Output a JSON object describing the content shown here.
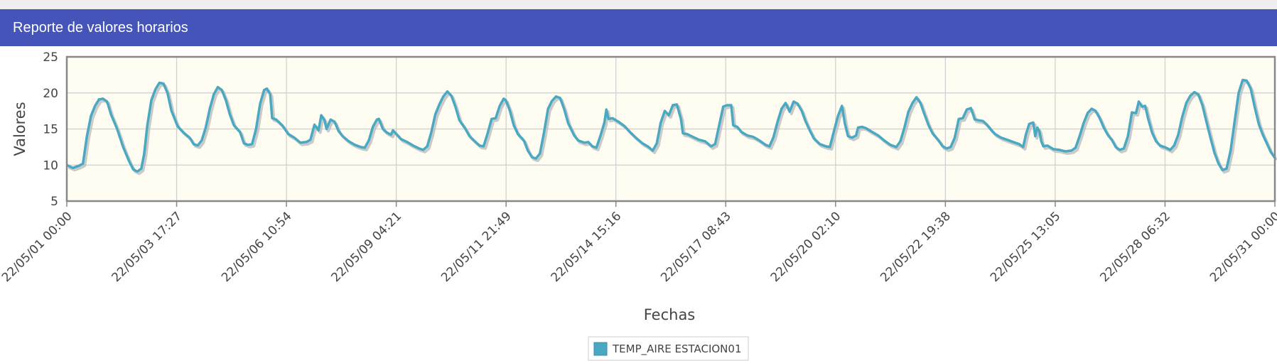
{
  "header": {
    "title": "Reporte de valores horarios"
  },
  "colors": {
    "header_bg": "#4454b8",
    "plot_bg": "#fffcf2",
    "series": "#4aa9c2",
    "shadow": "#bdbdbd",
    "grid": "#cfcfcf"
  },
  "chart_data": {
    "type": "line",
    "title": "",
    "xlabel": "Fechas",
    "ylabel": "Valores",
    "ylim": [
      5,
      25
    ],
    "yticks": [
      5,
      10,
      15,
      20,
      25
    ],
    "xlim": [
      "2022-05-01 00:00",
      "2022-05-31 00:00"
    ],
    "xtick_labels": [
      "22/05/01 00:00",
      "22/05/03 17:27",
      "22/05/06 10:54",
      "22/05/09 04:21",
      "22/05/11 21:49",
      "22/05/14 15:16",
      "22/05/17 08:43",
      "22/05/20 02:10",
      "22/05/22 19:38",
      "22/05/25 13:05",
      "22/05/28 06:32",
      "22/05/31 00:00"
    ],
    "grid": true,
    "legend_position": "bottom-center",
    "series": [
      {
        "name": "TEMP_AIRE ESTACION01",
        "color": "#4aa9c2",
        "note_x_unit": "days since 2022-05-01 00:00",
        "points": [
          [
            0.0,
            10.0
          ],
          [
            0.15,
            9.6
          ],
          [
            0.3,
            9.9
          ],
          [
            0.4,
            10.2
          ],
          [
            0.5,
            14.0
          ],
          [
            0.6,
            16.8
          ],
          [
            0.7,
            18.2
          ],
          [
            0.8,
            19.1
          ],
          [
            0.9,
            19.2
          ],
          [
            1.0,
            18.8
          ],
          [
            1.1,
            17.0
          ],
          [
            1.25,
            15.0
          ],
          [
            1.4,
            12.5
          ],
          [
            1.55,
            10.5
          ],
          [
            1.65,
            9.4
          ],
          [
            1.75,
            9.1
          ],
          [
            1.85,
            9.5
          ],
          [
            1.92,
            11.5
          ],
          [
            2.0,
            15.5
          ],
          [
            2.1,
            19.0
          ],
          [
            2.2,
            20.5
          ],
          [
            2.3,
            21.4
          ],
          [
            2.4,
            21.3
          ],
          [
            2.5,
            20.0
          ],
          [
            2.6,
            17.5
          ],
          [
            2.75,
            15.4
          ],
          [
            2.9,
            14.5
          ],
          [
            3.05,
            13.8
          ],
          [
            3.15,
            12.9
          ],
          [
            3.25,
            12.7
          ],
          [
            3.35,
            13.4
          ],
          [
            3.45,
            15.2
          ],
          [
            3.55,
            17.8
          ],
          [
            3.65,
            19.8
          ],
          [
            3.75,
            20.8
          ],
          [
            3.85,
            20.4
          ],
          [
            3.95,
            19.0
          ],
          [
            4.05,
            17.0
          ],
          [
            4.15,
            15.5
          ],
          [
            4.3,
            14.6
          ],
          [
            4.4,
            13.0
          ],
          [
            4.5,
            12.8
          ],
          [
            4.6,
            12.9
          ],
          [
            4.7,
            15.0
          ],
          [
            4.8,
            18.5
          ],
          [
            4.9,
            20.4
          ],
          [
            4.97,
            20.6
          ],
          [
            5.05,
            19.8
          ],
          [
            5.1,
            16.5
          ],
          [
            5.2,
            16.3
          ],
          [
            5.35,
            15.5
          ],
          [
            5.5,
            14.3
          ],
          [
            5.65,
            13.8
          ],
          [
            5.8,
            13.1
          ],
          [
            5.95,
            13.2
          ],
          [
            6.05,
            13.5
          ],
          [
            6.15,
            15.6
          ],
          [
            6.25,
            14.8
          ],
          [
            6.32,
            16.9
          ],
          [
            6.4,
            16.2
          ],
          [
            6.45,
            15.0
          ],
          [
            6.55,
            16.3
          ],
          [
            6.65,
            16.0
          ],
          [
            6.75,
            14.7
          ],
          [
            6.85,
            14.0
          ],
          [
            7.0,
            13.3
          ],
          [
            7.15,
            12.8
          ],
          [
            7.3,
            12.5
          ],
          [
            7.4,
            12.4
          ],
          [
            7.5,
            13.4
          ],
          [
            7.6,
            15.3
          ],
          [
            7.7,
            16.3
          ],
          [
            7.75,
            16.4
          ],
          [
            7.85,
            15.0
          ],
          [
            7.95,
            14.5
          ],
          [
            8.05,
            14.2
          ],
          [
            8.1,
            14.8
          ],
          [
            8.2,
            14.2
          ],
          [
            8.3,
            13.6
          ],
          [
            8.45,
            13.2
          ],
          [
            8.6,
            12.7
          ],
          [
            8.75,
            12.3
          ],
          [
            8.85,
            12.1
          ],
          [
            8.95,
            12.6
          ],
          [
            9.05,
            14.5
          ],
          [
            9.15,
            17.0
          ],
          [
            9.25,
            18.4
          ],
          [
            9.35,
            19.5
          ],
          [
            9.45,
            20.2
          ],
          [
            9.55,
            19.6
          ],
          [
            9.65,
            18.1
          ],
          [
            9.75,
            16.2
          ],
          [
            9.9,
            15.0
          ],
          [
            10.0,
            14.0
          ],
          [
            10.15,
            13.2
          ],
          [
            10.25,
            12.7
          ],
          [
            10.35,
            12.6
          ],
          [
            10.45,
            14.4
          ],
          [
            10.55,
            16.4
          ],
          [
            10.65,
            16.5
          ],
          [
            10.75,
            18.2
          ],
          [
            10.85,
            19.2
          ],
          [
            10.9,
            19.0
          ],
          [
            11.0,
            17.6
          ],
          [
            11.1,
            15.5
          ],
          [
            11.2,
            14.3
          ],
          [
            11.35,
            13.4
          ],
          [
            11.45,
            12.0
          ],
          [
            11.55,
            11.1
          ],
          [
            11.65,
            10.9
          ],
          [
            11.75,
            11.6
          ],
          [
            11.85,
            14.5
          ],
          [
            11.95,
            17.8
          ],
          [
            12.05,
            18.9
          ],
          [
            12.15,
            19.5
          ],
          [
            12.25,
            19.3
          ],
          [
            12.35,
            17.8
          ],
          [
            12.45,
            15.8
          ],
          [
            12.6,
            14.1
          ],
          [
            12.7,
            13.4
          ],
          [
            12.85,
            13.1
          ],
          [
            12.95,
            13.2
          ],
          [
            13.05,
            12.6
          ],
          [
            13.15,
            12.4
          ],
          [
            13.25,
            14.0
          ],
          [
            13.35,
            15.9
          ],
          [
            13.4,
            17.7
          ],
          [
            13.45,
            16.4
          ],
          [
            13.55,
            16.5
          ],
          [
            13.7,
            16.0
          ],
          [
            13.85,
            15.4
          ],
          [
            14.0,
            14.5
          ],
          [
            14.15,
            13.7
          ],
          [
            14.3,
            13.0
          ],
          [
            14.45,
            12.5
          ],
          [
            14.55,
            12.0
          ],
          [
            14.65,
            13.0
          ],
          [
            14.75,
            15.9
          ],
          [
            14.85,
            17.5
          ],
          [
            14.95,
            16.9
          ],
          [
            15.05,
            18.3
          ],
          [
            15.15,
            18.4
          ],
          [
            15.25,
            16.4
          ],
          [
            15.3,
            14.4
          ],
          [
            15.4,
            14.3
          ],
          [
            15.55,
            13.9
          ],
          [
            15.7,
            13.5
          ],
          [
            15.85,
            13.3
          ],
          [
            16.0,
            12.6
          ],
          [
            16.1,
            12.9
          ],
          [
            16.2,
            15.5
          ],
          [
            16.3,
            18.1
          ],
          [
            16.4,
            18.3
          ],
          [
            16.5,
            18.3
          ],
          [
            16.55,
            15.5
          ],
          [
            16.65,
            15.3
          ],
          [
            16.75,
            14.6
          ],
          [
            16.9,
            14.1
          ],
          [
            17.05,
            13.9
          ],
          [
            17.2,
            13.4
          ],
          [
            17.35,
            12.8
          ],
          [
            17.45,
            12.6
          ],
          [
            17.55,
            13.9
          ],
          [
            17.65,
            16.0
          ],
          [
            17.75,
            17.8
          ],
          [
            17.85,
            18.6
          ],
          [
            17.95,
            17.4
          ],
          [
            18.05,
            18.8
          ],
          [
            18.15,
            18.5
          ],
          [
            18.25,
            17.5
          ],
          [
            18.35,
            16.0
          ],
          [
            18.45,
            14.8
          ],
          [
            18.55,
            13.7
          ],
          [
            18.7,
            12.9
          ],
          [
            18.85,
            12.6
          ],
          [
            18.95,
            12.5
          ],
          [
            19.05,
            14.7
          ],
          [
            19.15,
            16.8
          ],
          [
            19.25,
            18.2
          ],
          [
            19.32,
            15.8
          ],
          [
            19.4,
            14.0
          ],
          [
            19.5,
            13.8
          ],
          [
            19.6,
            14.1
          ],
          [
            19.65,
            15.2
          ],
          [
            19.75,
            15.3
          ],
          [
            19.85,
            15.1
          ],
          [
            20.0,
            14.6
          ],
          [
            20.15,
            14.1
          ],
          [
            20.3,
            13.4
          ],
          [
            20.45,
            12.8
          ],
          [
            20.6,
            12.5
          ],
          [
            20.7,
            13.3
          ],
          [
            20.8,
            15.2
          ],
          [
            20.9,
            17.4
          ],
          [
            21.0,
            18.6
          ],
          [
            21.1,
            19.4
          ],
          [
            21.2,
            18.6
          ],
          [
            21.3,
            17.0
          ],
          [
            21.4,
            15.5
          ],
          [
            21.5,
            14.4
          ],
          [
            21.65,
            13.4
          ],
          [
            21.75,
            12.6
          ],
          [
            21.85,
            12.3
          ],
          [
            21.95,
            12.5
          ],
          [
            22.05,
            13.8
          ],
          [
            22.15,
            16.4
          ],
          [
            22.25,
            16.5
          ],
          [
            22.35,
            17.7
          ],
          [
            22.45,
            17.9
          ],
          [
            22.55,
            16.3
          ],
          [
            22.65,
            16.2
          ],
          [
            22.75,
            16.1
          ],
          [
            22.85,
            15.6
          ],
          [
            22.95,
            14.9
          ],
          [
            23.05,
            14.3
          ],
          [
            23.2,
            13.8
          ],
          [
            23.35,
            13.5
          ],
          [
            23.5,
            13.2
          ],
          [
            23.65,
            12.9
          ],
          [
            23.75,
            12.5
          ],
          [
            23.82,
            14.3
          ],
          [
            23.9,
            15.7
          ],
          [
            24.0,
            15.9
          ],
          [
            24.05,
            14.0
          ],
          [
            24.1,
            15.2
          ],
          [
            24.15,
            14.7
          ],
          [
            24.2,
            13.3
          ],
          [
            24.25,
            12.6
          ],
          [
            24.35,
            12.7
          ],
          [
            24.5,
            12.2
          ],
          [
            24.65,
            12.1
          ],
          [
            24.8,
            11.9
          ],
          [
            24.95,
            12.0
          ],
          [
            25.05,
            12.4
          ],
          [
            25.15,
            14.0
          ],
          [
            25.25,
            15.8
          ],
          [
            25.35,
            17.2
          ],
          [
            25.45,
            17.8
          ],
          [
            25.55,
            17.5
          ],
          [
            25.65,
            16.5
          ],
          [
            25.75,
            15.2
          ],
          [
            25.85,
            14.2
          ],
          [
            25.95,
            13.5
          ],
          [
            26.05,
            12.5
          ],
          [
            26.15,
            12.1
          ],
          [
            26.25,
            12.3
          ],
          [
            26.35,
            14.0
          ],
          [
            26.45,
            17.3
          ],
          [
            26.55,
            17.2
          ],
          [
            26.62,
            18.8
          ],
          [
            26.7,
            18.1
          ],
          [
            26.78,
            18.2
          ],
          [
            26.85,
            16.5
          ],
          [
            26.95,
            14.5
          ],
          [
            27.05,
            13.3
          ],
          [
            27.15,
            12.7
          ],
          [
            27.3,
            12.4
          ],
          [
            27.4,
            12.1
          ],
          [
            27.5,
            12.7
          ],
          [
            27.6,
            14.2
          ],
          [
            27.7,
            16.7
          ],
          [
            27.8,
            18.6
          ],
          [
            27.9,
            19.6
          ],
          [
            28.0,
            20.1
          ],
          [
            28.1,
            19.8
          ],
          [
            28.2,
            18.3
          ],
          [
            28.3,
            16.0
          ],
          [
            28.4,
            13.8
          ],
          [
            28.5,
            11.7
          ],
          [
            28.6,
            10.2
          ],
          [
            28.7,
            9.3
          ],
          [
            28.8,
            9.5
          ],
          [
            28.9,
            12.0
          ],
          [
            29.0,
            16.0
          ],
          [
            29.1,
            20.0
          ],
          [
            29.2,
            21.8
          ],
          [
            29.3,
            21.7
          ],
          [
            29.4,
            20.6
          ],
          [
            29.5,
            18.0
          ],
          [
            29.6,
            15.7
          ],
          [
            29.7,
            14.2
          ],
          [
            29.8,
            13.0
          ],
          [
            29.9,
            11.8
          ],
          [
            30.0,
            11.0
          ]
        ]
      }
    ]
  }
}
